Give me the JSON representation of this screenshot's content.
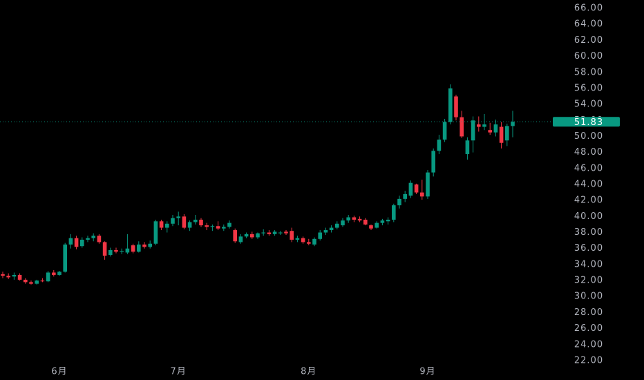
{
  "chart_data": {
    "type": "candlestick",
    "categories": [
      null,
      null,
      null,
      null,
      null,
      null,
      null,
      null,
      null,
      null,
      "6月",
      null,
      null,
      null,
      null,
      null,
      null,
      null,
      null,
      null,
      null,
      null,
      null,
      null,
      null,
      null,
      null,
      null,
      null,
      null,
      null,
      "7月",
      null,
      null,
      null,
      null,
      null,
      null,
      null,
      null,
      null,
      null,
      null,
      null,
      null,
      null,
      null,
      null,
      null,
      null,
      null,
      null,
      null,
      null,
      "8月",
      null,
      null,
      null,
      null,
      null,
      null,
      null,
      null,
      null,
      null,
      null,
      null,
      null,
      null,
      null,
      null,
      null,
      null,
      null,
      null,
      "9月",
      null,
      null,
      null,
      null,
      null,
      null,
      null,
      null,
      null,
      null,
      null,
      null,
      null,
      null,
      null
    ],
    "open": [
      32.8,
      32.6,
      32.5,
      32.7,
      32.1,
      31.8,
      31.6,
      32.0,
      31.9,
      33.0,
      32.7,
      33.1,
      36.5,
      37.3,
      36.3,
      37.1,
      37.3,
      37.6,
      36.8,
      35.2,
      35.8,
      35.6,
      35.5,
      36.4,
      35.6,
      36.5,
      36.2,
      36.6,
      39.4,
      38.6,
      39.1,
      39.8,
      40.0,
      38.6,
      39.3,
      39.6,
      38.9,
      38.7,
      38.8,
      38.5,
      38.7,
      38.3,
      36.8,
      37.5,
      37.8,
      37.4,
      37.9,
      38.0,
      37.8,
      37.9,
      38.1,
      38.2,
      37.1,
      37.3,
      36.8,
      36.5,
      37.2,
      38.0,
      38.3,
      38.6,
      38.9,
      39.5,
      39.9,
      39.7,
      39.6,
      38.9,
      38.6,
      39.2,
      39.4,
      39.6,
      41.4,
      42.2,
      42.6,
      44.0,
      43.0,
      42.5,
      45.5,
      48.2,
      49.6,
      51.8,
      55.0,
      52.4,
      47.8,
      49.5,
      51.5,
      51.2,
      50.8,
      50.5,
      51.2,
      49.5,
      51.3
    ],
    "high": [
      33.1,
      32.9,
      33.0,
      32.9,
      32.3,
      32.0,
      32.1,
      32.3,
      33.2,
      33.3,
      33.2,
      36.7,
      37.8,
      37.6,
      37.4,
      37.6,
      37.9,
      37.8,
      36.9,
      36.1,
      36.1,
      36.0,
      37.8,
      36.6,
      36.9,
      36.8,
      37.0,
      39.6,
      39.6,
      39.4,
      40.2,
      40.6,
      40.3,
      39.5,
      40.2,
      39.8,
      39.2,
      39.0,
      39.4,
      39.0,
      39.5,
      38.5,
      37.8,
      38.0,
      38.1,
      38.0,
      38.4,
      38.3,
      38.3,
      38.2,
      38.3,
      38.6,
      37.6,
      37.5,
      37.2,
      37.4,
      38.3,
      38.6,
      38.9,
      39.4,
      39.8,
      40.2,
      40.1,
      40.0,
      39.8,
      39.0,
      39.4,
      39.7,
      39.9,
      41.6,
      42.6,
      43.2,
      44.5,
      44.1,
      44.6,
      45.8,
      48.5,
      50.2,
      52.2,
      56.5,
      55.2,
      53.2,
      49.9,
      52.5,
      52.5,
      52.8,
      51.7,
      52.1,
      51.8,
      51.6,
      53.2
    ],
    "low": [
      32.3,
      32.2,
      32.1,
      32.0,
      31.6,
      31.5,
      31.5,
      31.8,
      31.8,
      32.5,
      32.6,
      33.0,
      36.0,
      35.9,
      36.1,
      36.8,
      36.9,
      36.6,
      34.6,
      35.0,
      35.4,
      35.3,
      35.3,
      35.4,
      35.5,
      36.0,
      36.0,
      36.4,
      38.3,
      38.0,
      38.8,
      38.9,
      38.4,
      38.2,
      39.0,
      38.7,
      38.3,
      38.2,
      38.3,
      38.2,
      38.5,
      36.7,
      36.6,
      37.3,
      37.2,
      37.2,
      37.6,
      37.6,
      37.6,
      37.7,
      37.7,
      36.8,
      36.8,
      36.6,
      36.4,
      36.3,
      37.0,
      37.7,
      38.0,
      38.4,
      38.7,
      39.2,
      39.3,
      39.3,
      38.9,
      38.3,
      38.5,
      38.9,
      39.0,
      39.3,
      41.0,
      41.8,
      42.3,
      42.8,
      42.1,
      42.2,
      45.0,
      47.8,
      49.3,
      51.5,
      52.0,
      49.8,
      47.1,
      48.0,
      50.6,
      50.8,
      50.2,
      50.0,
      48.5,
      48.8,
      49.9
    ],
    "close": [
      32.6,
      32.4,
      32.7,
      32.1,
      31.8,
      31.6,
      32.0,
      31.9,
      33.0,
      32.7,
      33.1,
      36.5,
      37.3,
      36.2,
      37.1,
      37.3,
      37.6,
      36.8,
      35.1,
      35.8,
      35.6,
      35.7,
      36.0,
      35.6,
      36.5,
      36.2,
      36.6,
      39.4,
      38.6,
      39.1,
      39.8,
      40.0,
      38.6,
      39.3,
      39.6,
      38.9,
      38.7,
      38.8,
      38.5,
      38.7,
      39.2,
      36.9,
      37.5,
      37.8,
      37.4,
      37.9,
      38.0,
      37.8,
      38.1,
      38.0,
      37.9,
      37.1,
      37.3,
      36.8,
      36.6,
      37.2,
      38.0,
      38.3,
      38.6,
      39.1,
      39.5,
      39.9,
      39.6,
      39.5,
      39.0,
      38.5,
      39.2,
      39.5,
      39.6,
      41.4,
      42.2,
      42.8,
      44.2,
      43.0,
      42.5,
      45.5,
      48.2,
      49.6,
      51.8,
      56.0,
      52.4,
      50.0,
      49.5,
      52.0,
      51.2,
      51.5,
      50.5,
      51.5,
      49.2,
      51.3,
      51.83
    ],
    "up_color": "#089981",
    "down_color": "#f23645",
    "last_price": 51.83,
    "ylim": [
      20.7,
      67.04
    ],
    "yticks": [
      {
        "value": 22,
        "label": "22.00"
      },
      {
        "value": 24,
        "label": "24.00"
      },
      {
        "value": 26,
        "label": "26.00"
      },
      {
        "value": 28,
        "label": "28.00"
      },
      {
        "value": 30,
        "label": "30.00"
      },
      {
        "value": 32,
        "label": "32.00"
      },
      {
        "value": 34,
        "label": "34.00"
      },
      {
        "value": 36,
        "label": "36.00"
      },
      {
        "value": 38,
        "label": "38.00"
      },
      {
        "value": 40,
        "label": "40.00"
      },
      {
        "value": 42,
        "label": "42.00"
      },
      {
        "value": 44,
        "label": "44.00"
      },
      {
        "value": 46,
        "label": "46.00"
      },
      {
        "value": 48,
        "label": "48.00"
      },
      {
        "value": 50,
        "label": "50.00"
      },
      {
        "value": 52,
        "label": "52.00"
      },
      {
        "value": 54,
        "label": "54.00"
      },
      {
        "value": 56,
        "label": "56.00"
      },
      {
        "value": 58,
        "label": "58.00"
      },
      {
        "value": 60,
        "label": "60.00"
      },
      {
        "value": 62,
        "label": "62.00"
      },
      {
        "value": 64,
        "label": "64.00"
      },
      {
        "value": 66,
        "label": "66.00"
      }
    ],
    "grid": false
  }
}
